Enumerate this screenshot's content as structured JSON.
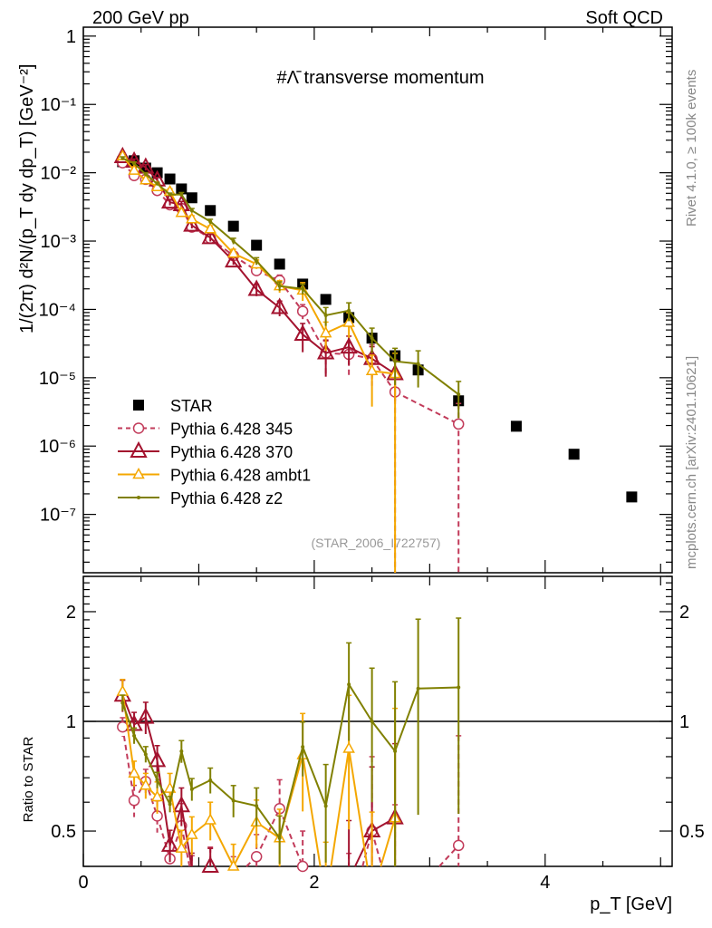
{
  "header": {
    "left": "200 GeV pp",
    "right": "Soft QCD",
    "side_top": "Rivet 4.1.0, ≥ 100k events",
    "side_bottom": "mcplots.cern.ch [arXiv:2401.10621]"
  },
  "chart_data": {
    "type": "line",
    "title": "#Λ̄ transverse momentum",
    "analysis_id": "(STAR_2006_I722757)",
    "xlabel": "p_T [GeV]",
    "ylabel": "1/(2π)  d²N/(p_T dy dp_T) [GeV⁻²]",
    "xlim": [
      0,
      5.1
    ],
    "ylim": [
      1.4e-08,
      1.35
    ],
    "yscale": "log",
    "x_ticks": [
      0,
      2,
      4
    ],
    "y_ticks": [
      {
        "value": 1,
        "label": "1"
      },
      {
        "value": 0.1,
        "label": "10⁻¹"
      },
      {
        "value": 0.01,
        "label": "10⁻²"
      },
      {
        "value": 0.001,
        "label": "10⁻³"
      },
      {
        "value": 0.0001,
        "label": "10⁻⁴"
      },
      {
        "value": 1e-05,
        "label": "10⁻⁵"
      },
      {
        "value": 1e-06,
        "label": "10⁻⁶"
      },
      {
        "value": 1e-07,
        "label": "10⁻⁷"
      }
    ],
    "legend_position": "bottom-left",
    "x": [
      0.34,
      0.44,
      0.54,
      0.64,
      0.75,
      0.85,
      0.94,
      1.1,
      1.3,
      1.5,
      1.7,
      1.9,
      2.1,
      2.3,
      2.5,
      2.7,
      2.9,
      3.25,
      3.75,
      4.25,
      4.75
    ],
    "series": [
      {
        "name": "STAR",
        "color": "#000000",
        "marker": "square",
        "line": "none",
        "values": [
          0.0145,
          0.015,
          0.0117,
          0.01,
          0.0081,
          0.0058,
          0.0043,
          0.0028,
          0.00165,
          0.00087,
          0.00046,
          0.000235,
          0.00014,
          7.6e-05,
          3.8e-05,
          2.1e-05,
          1.3e-05,
          4.6e-06,
          1.95e-06,
          7.6e-07,
          1.8e-07
        ],
        "rel_err": []
      },
      {
        "name": "Pythia 6.428 345",
        "color": "#c23b5a",
        "marker": "circle",
        "line": "dashed",
        "values": [
          0.014,
          0.0091,
          0.008,
          0.0055,
          0.0034,
          0.003,
          0.0016,
          0.0011,
          0.00061,
          0.00037,
          0.000265,
          9.4e-05,
          2.3e-05,
          2.2e-05,
          1.9e-05,
          6.2e-06,
          null,
          2.1e-06,
          null,
          null,
          null
        ],
        "rel_err": [
          0.06,
          0.1,
          0.08,
          0.1,
          0.12,
          0.15,
          0.15,
          0.15,
          0.15,
          0.15,
          0.2,
          0.25,
          0.5,
          0.5,
          0.6,
          1.0,
          null,
          1.0
        ]
      },
      {
        "name": "Pythia 6.428 370",
        "color": "#a3122e",
        "marker": "triangle",
        "line": "solid",
        "values": [
          0.0171,
          0.0147,
          0.012,
          0.0078,
          0.0037,
          0.0034,
          0.0017,
          0.00112,
          0.00051,
          0.000195,
          0.000106,
          4.3e-05,
          2.3e-05,
          2.8e-05,
          1.9e-05,
          1.14e-05,
          null,
          null,
          null,
          null,
          null
        ],
        "rel_err": [
          0.1,
          0.08,
          0.1,
          0.1,
          0.1,
          0.12,
          0.1,
          0.12,
          0.12,
          0.2,
          0.25,
          0.45,
          0.55,
          0.45,
          0.5,
          0.6
        ]
      },
      {
        "name": "Pythia 6.428 ambt1",
        "color": "#f4a700",
        "marker": "triangle-small",
        "line": "solid",
        "values": [
          0.0175,
          0.0108,
          0.0078,
          0.0062,
          0.0053,
          0.0026,
          0.0021,
          0.0015,
          0.00066,
          0.00046,
          0.00022,
          0.00019,
          4.5e-05,
          6.4e-05,
          1.26e-05,
          1.14e-05,
          null,
          null,
          null,
          null,
          null
        ],
        "rel_err": [
          0.08,
          0.08,
          0.08,
          0.1,
          0.1,
          0.12,
          0.12,
          0.12,
          0.15,
          0.15,
          0.2,
          0.3,
          0.45,
          0.4,
          0.7,
          1.0
        ]
      },
      {
        "name": "Pythia 6.428 z2",
        "color": "#808000",
        "marker": "dot",
        "line": "solid",
        "values": [
          0.0163,
          0.0137,
          0.0095,
          0.0069,
          0.0048,
          0.0048,
          0.0028,
          0.00193,
          0.001,
          0.00051,
          0.00022,
          0.0002,
          8.2e-05,
          9.6e-05,
          3.8e-05,
          1.74e-05,
          1.6e-05,
          5.7e-06,
          null,
          null,
          null
        ],
        "rel_err": [
          0.05,
          0.05,
          0.05,
          0.05,
          0.05,
          0.07,
          0.07,
          0.08,
          0.1,
          0.12,
          0.15,
          0.17,
          0.3,
          0.3,
          0.4,
          0.55,
          0.55,
          0.55
        ]
      }
    ],
    "ratio_panel": {
      "ylabel": "Ratio to STAR",
      "reference": "STAR",
      "ylim": [
        0.4,
        2.5
      ],
      "yscale": "log",
      "y_ticks": [
        {
          "value": 0.5,
          "label": "0.5"
        },
        {
          "value": 1,
          "label": "1"
        },
        {
          "value": 2,
          "label": "2"
        }
      ]
    }
  }
}
